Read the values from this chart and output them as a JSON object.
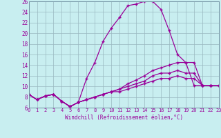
{
  "xlabel": "Windchill (Refroidissement éolien,°C)",
  "background_color": "#c8eef0",
  "line_color": "#990099",
  "x_values": [
    0,
    1,
    2,
    3,
    4,
    5,
    6,
    7,
    8,
    9,
    10,
    11,
    12,
    13,
    14,
    15,
    16,
    17,
    18,
    19,
    20,
    21,
    22,
    23
  ],
  "series": [
    [
      8.5,
      7.5,
      8.2,
      8.5,
      7.2,
      6.2,
      7.0,
      11.5,
      14.5,
      18.5,
      21.0,
      23.0,
      25.2,
      25.5,
      26.0,
      26.0,
      24.5,
      20.5,
      16.0,
      14.5,
      10.2,
      10.2,
      10.2,
      10.2
    ],
    [
      8.5,
      7.5,
      8.2,
      8.5,
      7.2,
      6.2,
      7.0,
      7.5,
      8.0,
      8.5,
      9.0,
      9.5,
      10.5,
      11.2,
      12.0,
      13.0,
      13.5,
      14.0,
      14.5,
      14.5,
      14.5,
      10.2,
      10.2,
      10.2
    ],
    [
      8.5,
      7.5,
      8.2,
      8.5,
      7.2,
      6.2,
      7.0,
      7.5,
      8.0,
      8.5,
      9.0,
      9.5,
      10.0,
      10.5,
      11.0,
      12.0,
      12.5,
      12.5,
      13.0,
      12.5,
      12.5,
      10.2,
      10.2,
      10.2
    ],
    [
      8.5,
      7.5,
      8.2,
      8.5,
      7.2,
      6.2,
      7.0,
      7.5,
      8.0,
      8.5,
      9.0,
      9.0,
      9.5,
      10.0,
      10.5,
      11.0,
      11.5,
      11.5,
      12.0,
      11.5,
      11.5,
      10.2,
      10.2,
      10.2
    ]
  ],
  "xlim": [
    0,
    23
  ],
  "ylim": [
    6,
    26
  ],
  "yticks": [
    6,
    8,
    10,
    12,
    14,
    16,
    18,
    20,
    22,
    24,
    26
  ],
  "xticks": [
    0,
    1,
    2,
    3,
    4,
    5,
    6,
    7,
    8,
    9,
    10,
    11,
    12,
    13,
    14,
    15,
    16,
    17,
    18,
    19,
    20,
    21,
    22,
    23
  ],
  "grid_color": "#9ab8c0",
  "marker": "+"
}
